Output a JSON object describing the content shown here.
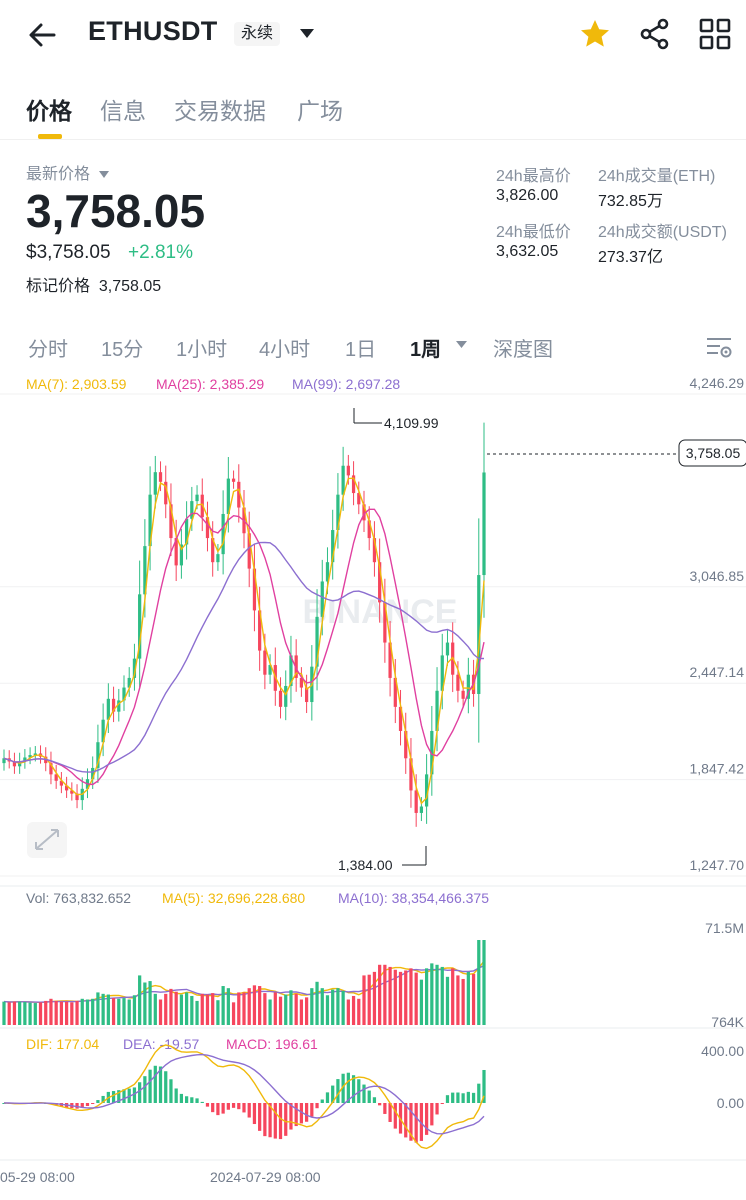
{
  "header": {
    "symbol": "ETHUSDT",
    "contract_type": "永续"
  },
  "tabs": [
    {
      "label": "价格",
      "active": true
    },
    {
      "label": "信息",
      "active": false
    },
    {
      "label": "交易数据",
      "active": false
    },
    {
      "label": "广场",
      "active": false
    }
  ],
  "price": {
    "label": "最新价格",
    "last": "3,758.05",
    "usd_value": "$3,758.05",
    "change": "+2.81%",
    "mark_label": "标记价格",
    "mark_value": "3,758.05"
  },
  "stats": {
    "high_label": "24h最高价",
    "high_value": "3,826.00",
    "low_label": "24h最低价",
    "low_value": "3,632.05",
    "vol_eth_label": "24h成交量(ETH)",
    "vol_eth_value": "732.85万",
    "vol_usdt_label": "24h成交额(USDT)",
    "vol_usdt_value": "273.37亿"
  },
  "intervals": [
    {
      "label": "分时",
      "active": false
    },
    {
      "label": "15分",
      "active": false
    },
    {
      "label": "1小时",
      "active": false
    },
    {
      "label": "4小时",
      "active": false
    },
    {
      "label": "1日",
      "active": false
    },
    {
      "label": "1周",
      "active": true
    },
    {
      "label": "深度图",
      "active": false
    }
  ],
  "colors": {
    "up": "#2ebd85",
    "down": "#f6465d",
    "accent": "#f0b90b",
    "ma7": "#f0b90b",
    "ma25": "#e040a0",
    "ma99": "#8c6fd0"
  },
  "icons": {
    "back": "back-arrow-icon",
    "caret": "caret-down-icon",
    "favorite": "star-icon",
    "share": "share-icon",
    "layout": "grid-icon",
    "settings": "chart-settings-icon",
    "expand": "expand-icon"
  },
  "chart_data": {
    "type": "candlestick",
    "interval": "1周",
    "watermark": "BINANCE",
    "price_axis": [
      "4,246.29",
      "3,046.85",
      "2,447.14",
      "1,847.42",
      "1,247.70"
    ],
    "ylim": [
      1247.7,
      4246.29
    ],
    "current_price_tag": "3,758.05",
    "high_marker": "4,109.99",
    "low_marker": "1,384.00",
    "ma_labels": {
      "ma7": "MA(7): 2,903.59",
      "ma25": "MA(25): 2,385.29",
      "ma99": "MA(99): 2,697.28"
    },
    "volume": {
      "vol_label": "Vol: 763,832.652",
      "ma5_label": "MA(5): 32,696,228.680",
      "ma10_label": "MA(10): 38,354,466.375",
      "axis_top": "71.5M",
      "axis_bottom": "764K"
    },
    "macd": {
      "dif_label": "DIF: 177.04",
      "dea_label": "DEA: -19.57",
      "macd_label": "MACD: 196.61",
      "axis_top": "400.00",
      "axis_zero": "0.00"
    },
    "x_labels": [
      "05-29 08:00",
      "2024-07-29 08:00"
    ],
    "closes": [
      1980,
      1960,
      1930,
      1960,
      1985,
      2000,
      2010,
      1990,
      1950,
      1880,
      1840,
      1810,
      1780,
      1760,
      1720,
      1790,
      1850,
      1920,
      2080,
      2220,
      2350,
      2270,
      2340,
      2420,
      2480,
      2600,
      3000,
      3300,
      3620,
      3760,
      3700,
      3560,
      3350,
      3180,
      3310,
      3470,
      3580,
      3620,
      3480,
      3350,
      3200,
      3250,
      3500,
      3720,
      3700,
      3540,
      3380,
      3160,
      2900,
      2650,
      2500,
      2560,
      2400,
      2300,
      2430,
      2620,
      2480,
      2420,
      2330,
      2550,
      2860,
      3080,
      3200,
      3400,
      3620,
      3800,
      3740,
      3630,
      3560,
      3460,
      3350,
      3200,
      2950,
      2700,
      2480,
      2300,
      2150,
      1980,
      1780,
      1640,
      1680,
      1880,
      2150,
      2400,
      2620,
      2700,
      2500,
      2400,
      2350,
      2500,
      2380,
      3120,
      3758
    ]
  }
}
